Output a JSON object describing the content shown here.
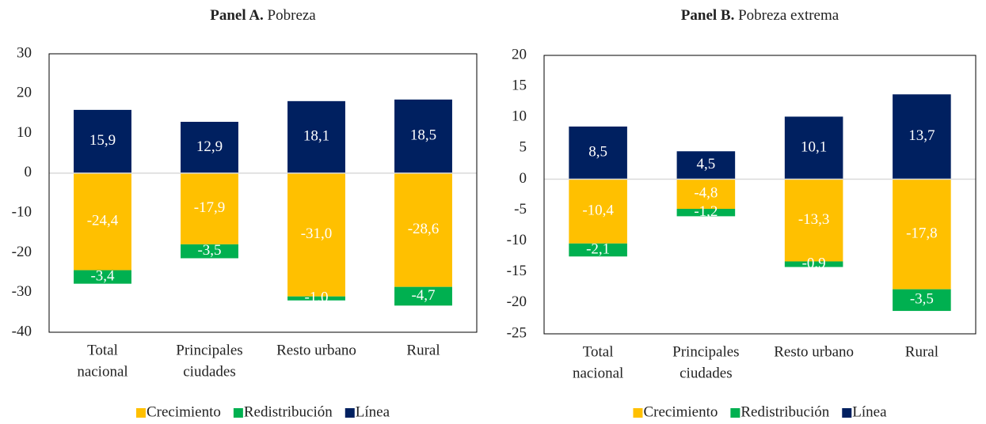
{
  "chart_data": [
    {
      "type": "bar",
      "stacked": true,
      "panel": "Panel A.",
      "title": "Pobreza",
      "categories": [
        [
          "Total",
          "nacional"
        ],
        [
          "Principales",
          "ciudades"
        ],
        [
          "Resto urbano"
        ],
        [
          "Rural"
        ]
      ],
      "series": [
        {
          "name": "Crecimiento",
          "color": "#FFC000",
          "values": [
            -24.4,
            -17.9,
            -31.0,
            -28.6
          ],
          "value_labels": [
            "-24,4",
            "-17,9",
            "-31,0",
            "-28,6"
          ]
        },
        {
          "name": "Redistribución",
          "color": "#00B050",
          "values": [
            -3.4,
            -3.5,
            -1.0,
            -4.7
          ],
          "value_labels": [
            "-3,4",
            "-3,5",
            "-1,0",
            "-4,7"
          ]
        },
        {
          "name": "Línea",
          "color": "#002060",
          "values": [
            15.9,
            12.9,
            18.1,
            18.5
          ],
          "value_labels": [
            "15,9",
            "12,9",
            "18,1",
            "18,5"
          ]
        }
      ],
      "ylim": [
        -40,
        30
      ],
      "yticks": [
        -40,
        -30,
        -20,
        -10,
        0,
        10,
        20,
        30
      ],
      "legend": "bottom"
    },
    {
      "type": "bar",
      "stacked": true,
      "panel": "Panel B.",
      "title": "Pobreza extrema",
      "categories": [
        [
          "Total",
          "nacional"
        ],
        [
          "Principales",
          "ciudades"
        ],
        [
          "Resto urbano"
        ],
        [
          "Rural"
        ]
      ],
      "series": [
        {
          "name": "Crecimiento",
          "color": "#FFC000",
          "values": [
            -10.4,
            -4.8,
            -13.3,
            -17.8
          ],
          "value_labels": [
            "-10,4",
            "-4,8",
            "-13,3",
            "-17,8"
          ]
        },
        {
          "name": "Redistribución",
          "color": "#00B050",
          "values": [
            -2.1,
            -1.2,
            -0.9,
            -3.5
          ],
          "value_labels": [
            "-2,1",
            "-1,2",
            "-0,9",
            "-3,5"
          ]
        },
        {
          "name": "Línea",
          "color": "#002060",
          "values": [
            8.5,
            4.5,
            10.1,
            13.7
          ],
          "value_labels": [
            "8,5",
            "4,5",
            "10,1",
            "13,7"
          ]
        }
      ],
      "ylim": [
        -25,
        20
      ],
      "yticks": [
        -25,
        -20,
        -15,
        -10,
        -5,
        0,
        5,
        10,
        15,
        20
      ],
      "legend": "bottom"
    }
  ]
}
